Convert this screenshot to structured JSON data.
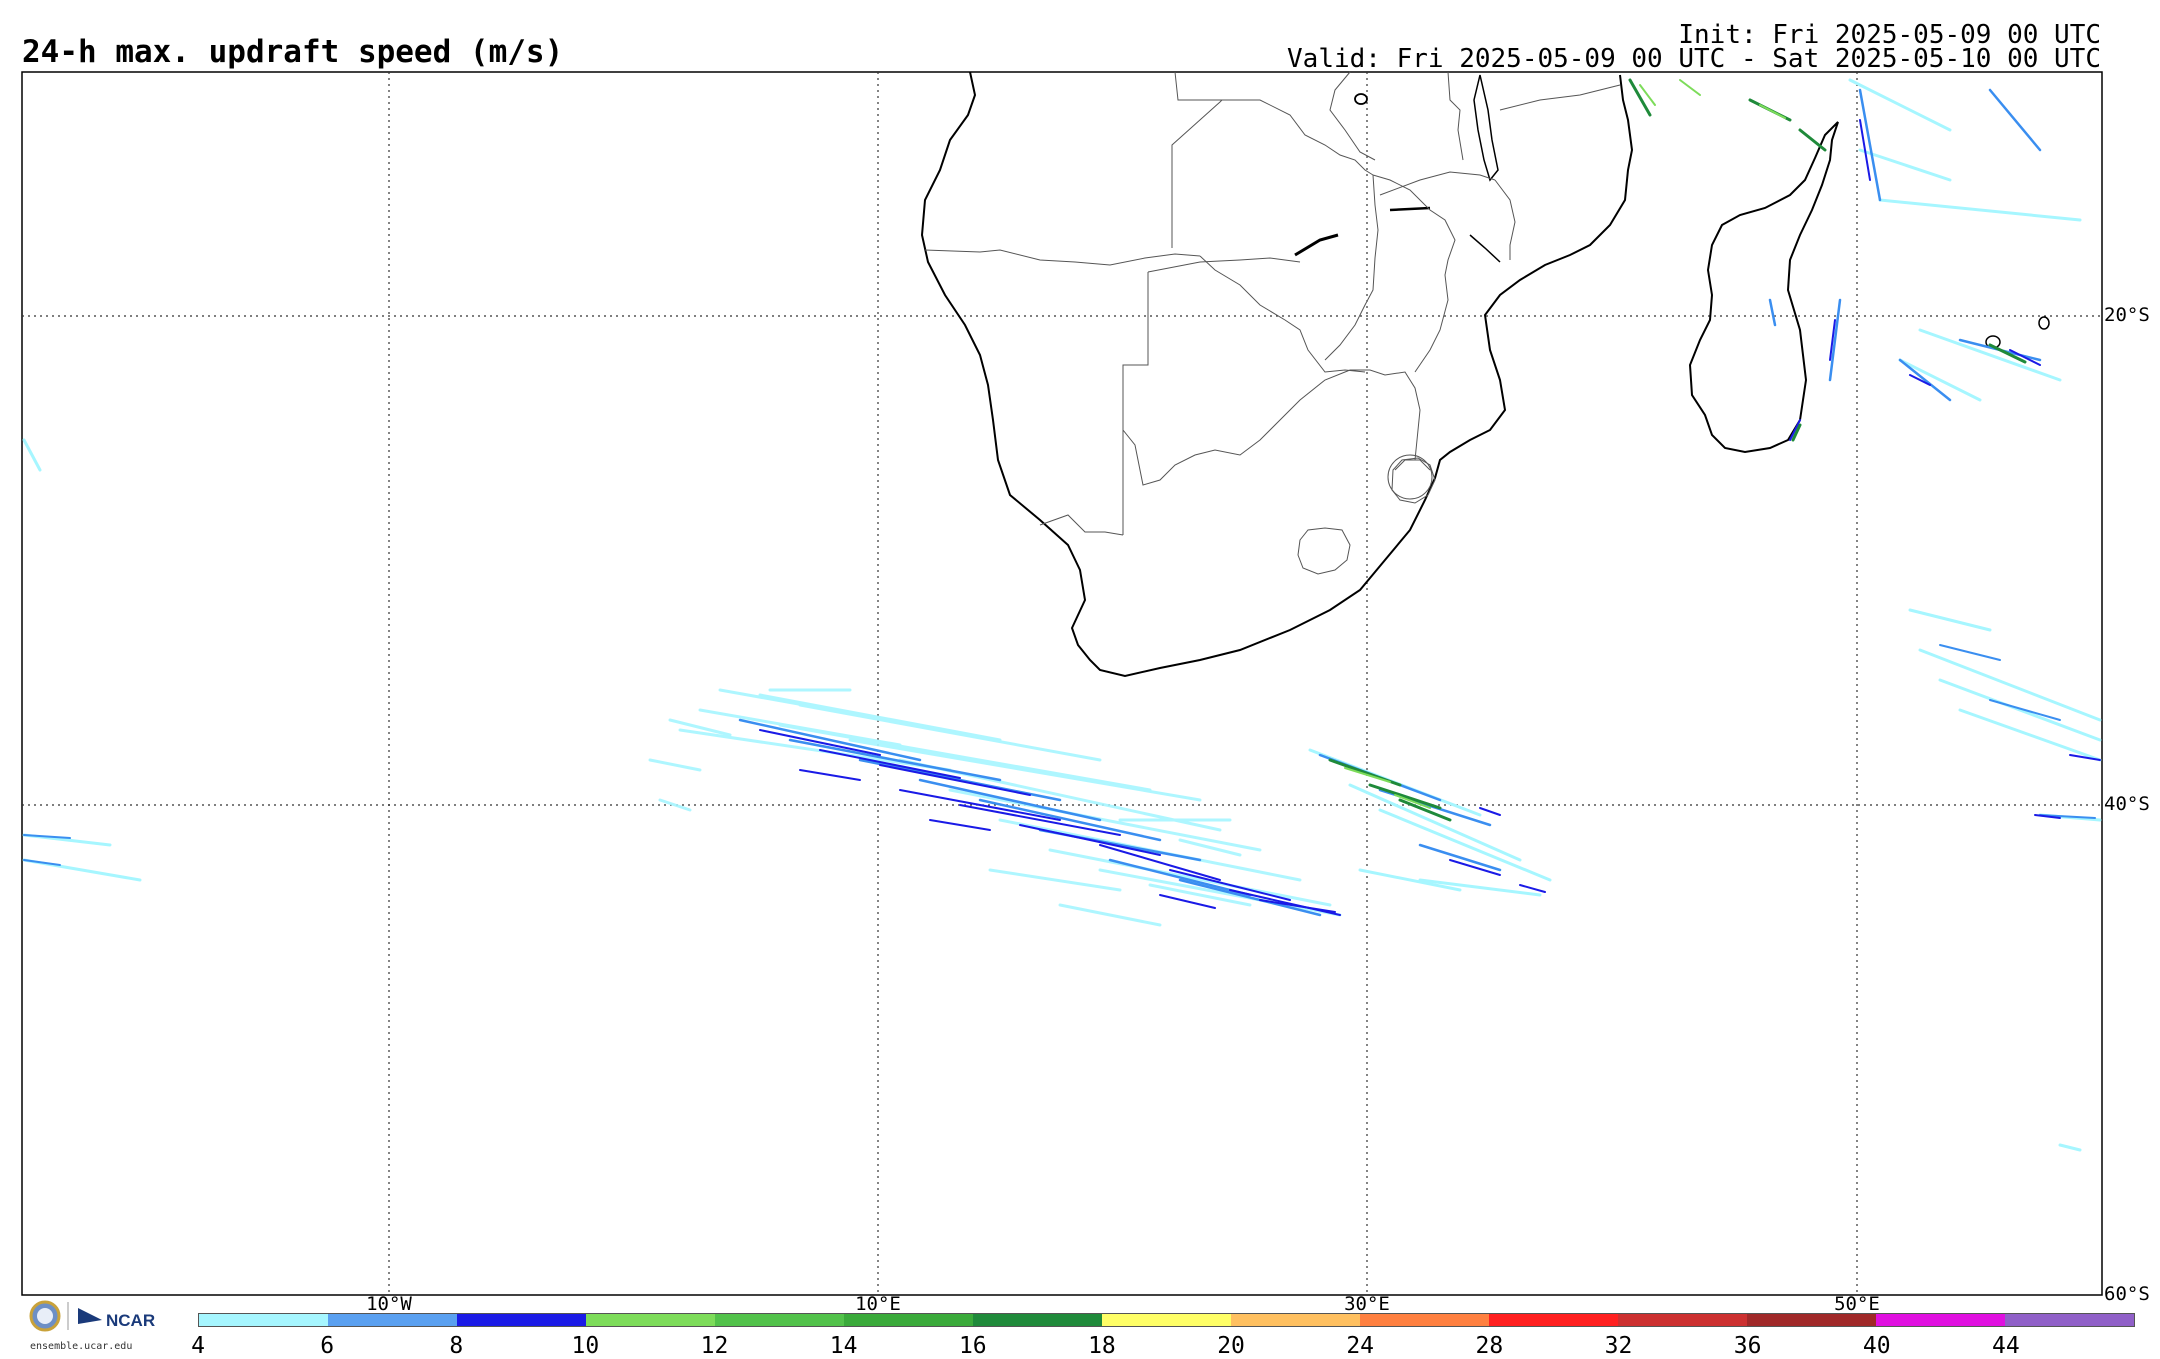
{
  "header": {
    "title": "24-h max. updraft speed (m/s)",
    "init": "Init: Fri 2025-05-09 00 UTC",
    "valid": "Valid: Fri 2025-05-09 00 UTC - Sat 2025-05-10 00 UTC"
  },
  "map": {
    "projection": "cylindrical equidistant",
    "lat_labels": [
      "20°S",
      "40°S",
      "60°S"
    ],
    "lon_labels": [
      "10°W",
      "10°E",
      "30°E",
      "50°E"
    ],
    "grid": "dotted",
    "field_colors": {
      "light_cyan": "#a6f6ff",
      "blue": "#3a8ef0",
      "dark_blue": "#1a1ae6",
      "green": "#3fb043",
      "dark_green": "#1f8a3a"
    }
  },
  "colorbar": {
    "labels": [
      "4",
      "6",
      "8",
      "10",
      "12",
      "14",
      "16",
      "18",
      "20",
      "24",
      "28",
      "32",
      "36",
      "40",
      "44"
    ],
    "colors": [
      "#a6f6ff",
      "#5aa0f0",
      "#1a1ae6",
      "#7ddc5a",
      "#52c24a",
      "#3aaa3a",
      "#1f8a3a",
      "#ffff66",
      "#ffc060",
      "#ff8040",
      "#ff2020",
      "#cc3030",
      "#a02828",
      "#e010e0",
      "#9060c8"
    ]
  },
  "logo": {
    "org": "NCAR",
    "badge": "NSF",
    "url": "ensemble.ucar.edu"
  }
}
